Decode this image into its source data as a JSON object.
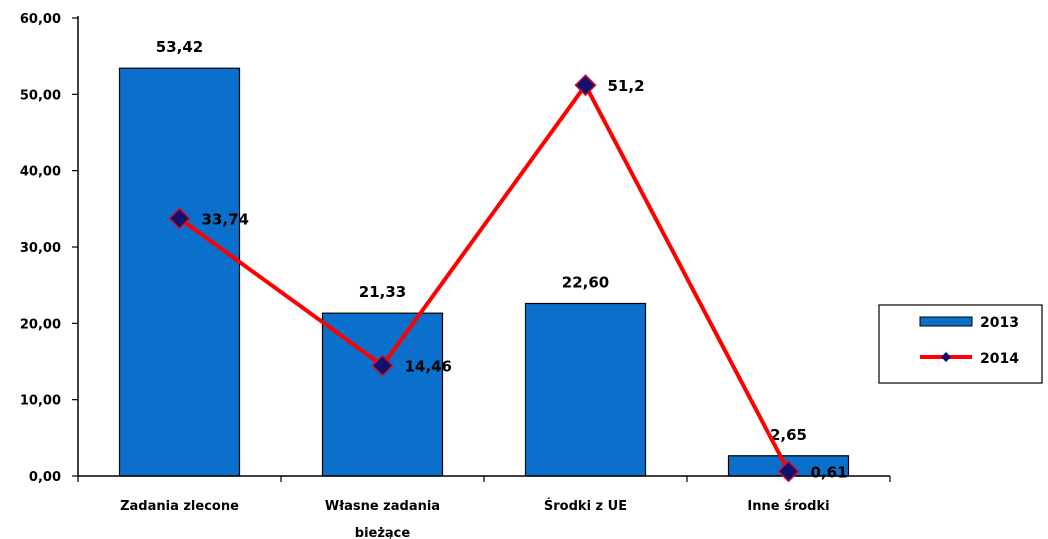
{
  "chart_data": {
    "type": "bar",
    "title": "",
    "xlabel": "",
    "ylabel": "",
    "ylim": [
      0,
      60
    ],
    "yticks": [
      "0,00",
      "10,00",
      "20,00",
      "30,00",
      "40,00",
      "50,00",
      "60,00"
    ],
    "grid": false,
    "legend_position": "right",
    "categories": [
      [
        "Zadania zlecone"
      ],
      [
        "Własne zadania",
        "bieżące"
      ],
      [
        "Środki z UE"
      ],
      [
        "Inne środki"
      ]
    ],
    "series": [
      {
        "name": "2013",
        "type": "bar",
        "color": "#0B6FCC",
        "values": [
          53.42,
          21.33,
          22.6,
          2.65
        ],
        "labels": [
          "53,42",
          "21,33",
          "22,60",
          "2,65"
        ]
      },
      {
        "name": "2014",
        "type": "line",
        "color": "#FF0000",
        "marker_color": "#10106E",
        "values": [
          33.74,
          14.46,
          51.2,
          0.61
        ],
        "labels": [
          "33,74",
          "14,46",
          "51,2",
          "0,61"
        ]
      }
    ]
  }
}
